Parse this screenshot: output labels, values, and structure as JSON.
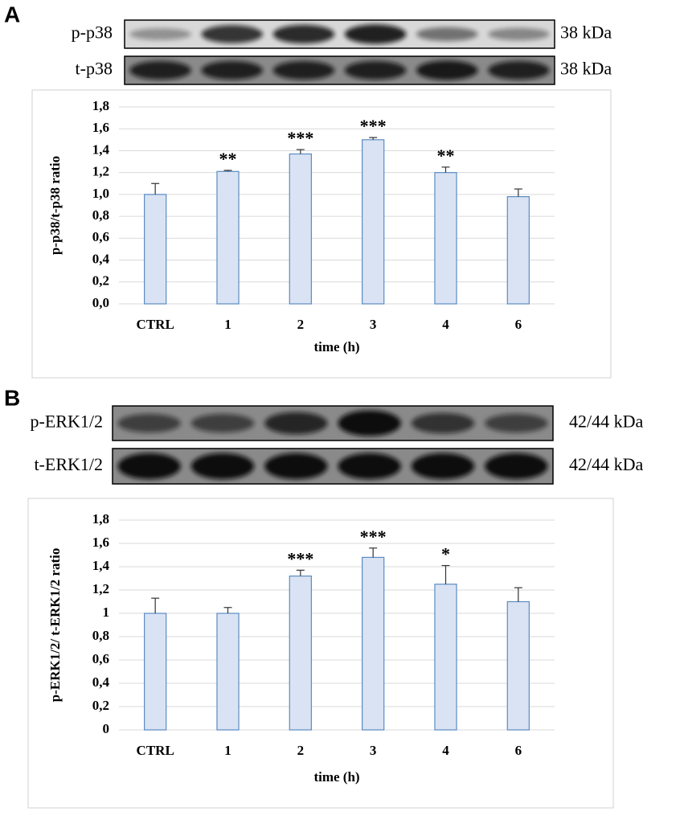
{
  "chart_data": [
    {
      "type": "bar",
      "panel": "A",
      "blots": [
        {
          "label": "p-p38",
          "size": "38 kDa"
        },
        {
          "label": "t-p38",
          "size": "38 kDa"
        }
      ],
      "x_label": "time (h)",
      "y_label": "p-p38/t-p38 ratio",
      "categories": [
        "CTRL",
        "1",
        "2",
        "3",
        "4",
        "6"
      ],
      "values": [
        1.0,
        1.21,
        1.37,
        1.5,
        1.2,
        0.98
      ],
      "errors": [
        0.1,
        0.01,
        0.04,
        0.02,
        0.05,
        0.07
      ],
      "annotations": [
        null,
        "**",
        "***",
        "***",
        "**",
        null
      ],
      "color": "#dae3f3",
      "edge_color": "#5b8cc4",
      "ylim": [
        0,
        1.8
      ],
      "yticks": [
        {
          "value": 0,
          "label": "0,0"
        },
        {
          "value": 0.2,
          "label": "0,2"
        },
        {
          "value": 0.4,
          "label": "0,4"
        },
        {
          "value": 0.6,
          "label": "0,6"
        },
        {
          "value": 0.8,
          "label": "0,8"
        },
        {
          "value": 1.0,
          "label": "1,0"
        },
        {
          "value": 1.2,
          "label": "1,2"
        },
        {
          "value": 1.4,
          "label": "1,4"
        },
        {
          "value": 1.6,
          "label": "1,6"
        },
        {
          "value": 1.8,
          "label": "1,8"
        }
      ],
      "grid": true
    },
    {
      "type": "bar",
      "panel": "B",
      "blots": [
        {
          "label": "p-ERK1/2",
          "size": "42/44 kDa"
        },
        {
          "label": "t-ERK1/2",
          "size": "42/44 kDa"
        }
      ],
      "x_label": "time (h)",
      "y_label": "p-ERK1/2/ t-ERK1/2 ratio",
      "categories": [
        "CTRL",
        "1",
        "2",
        "3",
        "4",
        "6"
      ],
      "values": [
        1.0,
        1.0,
        1.32,
        1.48,
        1.25,
        1.1
      ],
      "errors": [
        0.13,
        0.05,
        0.05,
        0.08,
        0.16,
        0.12
      ],
      "annotations": [
        null,
        null,
        "***",
        "***",
        "*",
        null
      ],
      "color": "#dae3f3",
      "edge_color": "#5b8cc4",
      "ylim": [
        0,
        1.8
      ],
      "yticks": [
        0,
        {
          "value": 0.2,
          "label": "0,2"
        },
        {
          "value": 0.4,
          "label": "0,4"
        },
        {
          "value": 0.6,
          "label": "0,6"
        },
        {
          "value": 0.8,
          "label": "0,8"
        },
        1,
        {
          "value": 1.2,
          "label": "1,2"
        },
        {
          "value": 1.4,
          "label": "1,4"
        },
        {
          "value": 1.6,
          "label": "1,6"
        },
        {
          "value": 1.8,
          "label": "1,8"
        }
      ],
      "grid": true
    }
  ]
}
